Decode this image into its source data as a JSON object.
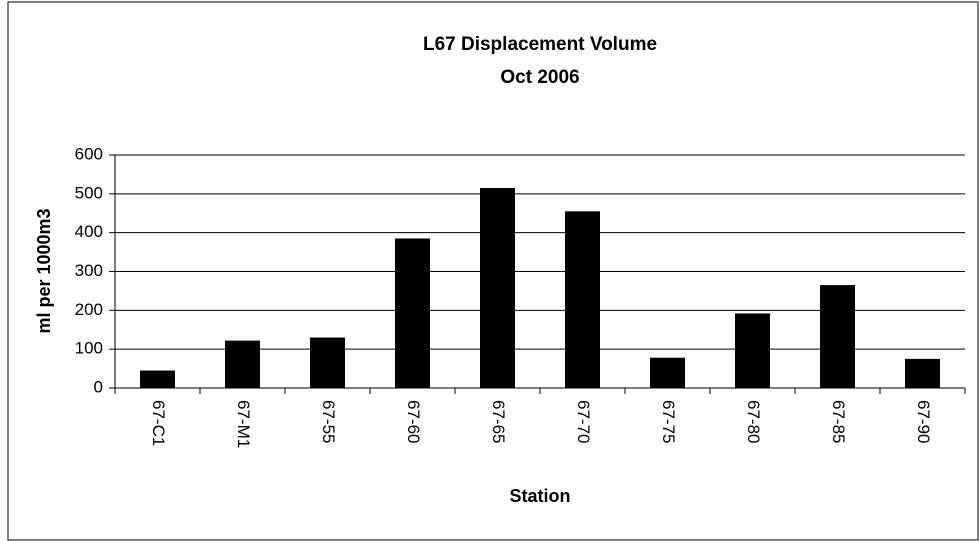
{
  "chart_data": {
    "type": "bar",
    "title": "L67 Displacement Volume",
    "subtitle": "Oct 2006",
    "xlabel": "Station",
    "ylabel": "ml per 1000m3",
    "categories": [
      "67-C1",
      "67-M1",
      "67-55",
      "67-60",
      "67-65",
      "67-70",
      "67-75",
      "67-80",
      "67-85",
      "67-90"
    ],
    "values": [
      45,
      122,
      130,
      385,
      515,
      455,
      78,
      192,
      265,
      75
    ],
    "color": "#000000",
    "ylim": [
      0,
      600
    ],
    "yticks": [
      0,
      100,
      200,
      300,
      400,
      500,
      600
    ],
    "grid": true
  }
}
